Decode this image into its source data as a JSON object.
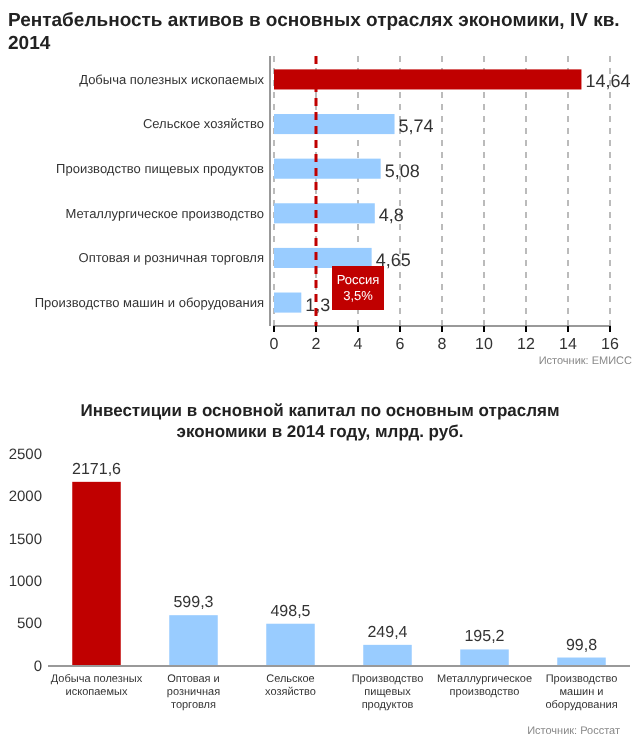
{
  "chart_data": [
    {
      "type": "bar",
      "orientation": "horizontal",
      "title": "Рентабельность активов в основных отраслях экономики, IV кв. 2014",
      "categories": [
        "Добыча полезных ископаемых",
        "Сельское хозяйство",
        "Производство пищевых продуктов",
        "Металлургическое производство",
        "Оптовая и розничная торговля",
        "Производство машин и оборудования"
      ],
      "values": [
        14.64,
        5.74,
        5.08,
        4.8,
        4.65,
        1.3
      ],
      "value_labels": [
        "14,64",
        "5,74",
        "5,08",
        "4,8",
        "4,65",
        "1,3"
      ],
      "colors": [
        "#c00000",
        "#99ccff",
        "#99ccff",
        "#99ccff",
        "#99ccff",
        "#99ccff"
      ],
      "xlim": [
        0,
        16
      ],
      "xticks": [
        0,
        2,
        4,
        6,
        8,
        10,
        12,
        14,
        16
      ],
      "grid": "x",
      "ref_lines": [
        {
          "axis": "x",
          "value": 2,
          "label": "Россия 3,5%",
          "color": "#c00000",
          "line_style": "dashed"
        }
      ],
      "annotations": [
        "Источник: ЕМИСС"
      ]
    },
    {
      "type": "bar",
      "title": "Инвестиции в основной капитал по основным отраслям экономики в 2014 году, млрд. руб.",
      "categories": [
        "Добыча полезных ископаемых",
        "Оптовая и розничная торговля",
        "Сельское хозяйство",
        "Производство пищевых продуктов",
        "Металлургическое производство",
        "Производство машин и оборудования"
      ],
      "values": [
        2171.6,
        599.3,
        498.5,
        249.4,
        195.2,
        99.8
      ],
      "value_labels": [
        "2171,6",
        "599,3",
        "498,5",
        "249,4",
        "195,2",
        "99,8"
      ],
      "colors": [
        "#c00000",
        "#99ccff",
        "#99ccff",
        "#99ccff",
        "#99ccff",
        "#99ccff"
      ],
      "ylim": [
        0,
        2500
      ],
      "yticks": [
        0,
        500,
        1000,
        1500,
        2000,
        2500
      ],
      "grid": false,
      "annotations": [
        "Источник: Росстат"
      ]
    }
  ]
}
